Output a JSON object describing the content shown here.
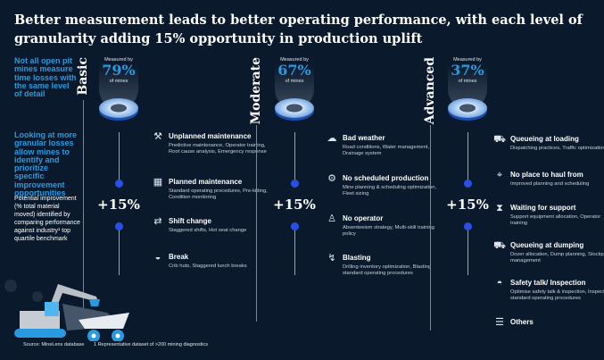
{
  "title": "Better measurement leads to better operating performance, with each level of granularity adding 15% opportunity in production uplift",
  "left": {
    "intro": "Not all open pit mines measure time losses with the same level of detail",
    "granular": "Looking at more granular losses allow mines to identify and prioritize specific improvement opportunities",
    "note": "Potential improvement (% total material moved) identified by comparing performance against industry¹ top quartile benchmark"
  },
  "levels": [
    {
      "name": "Basic",
      "measured_by": "Measured by",
      "pct": "79%",
      "of_mines": "of mines",
      "uplift": "+15%"
    },
    {
      "name": "Moderate",
      "measured_by": "Measured by",
      "pct": "67%",
      "of_mines": "of mines",
      "uplift": "+15%"
    },
    {
      "name": "Advanced",
      "measured_by": "Measured by",
      "pct": "37%",
      "of_mines": "of mines",
      "uplift": "+15%"
    }
  ],
  "basic_items": [
    {
      "icon": "tools-icon",
      "title": "Unplanned maintenance",
      "desc": "Predictive maintenance, Operator training, Root cause analysis, Emergency response"
    },
    {
      "icon": "calendar-clock-icon",
      "title": "Planned maintenance",
      "desc": "Standard operating procedures, Pre-kitting, Condition monitoring"
    },
    {
      "icon": "swap-arrows-icon",
      "title": "Shift change",
      "desc": "Staggered shifts, Hot seat change"
    },
    {
      "icon": "bowl-icon",
      "title": "Break",
      "desc": "Crib huts, Staggered lunch breaks"
    }
  ],
  "moderate_items": [
    {
      "icon": "rain-cloud-icon",
      "title": "Bad weather",
      "desc": "Road conditions, Water management, Drainage system"
    },
    {
      "icon": "gear-icon",
      "title": "No scheduled production",
      "desc": "Mine planning & scheduling optimization, Fleet sizing"
    },
    {
      "icon": "person-icon",
      "title": "No operator",
      "desc": "Absenteeism strategy, Multi-skill training policy"
    },
    {
      "icon": "blasting-icon",
      "title": "Blasting",
      "desc": "Drilling inventory optimization, Blasting standard operating procedures"
    }
  ],
  "advanced_items": [
    {
      "icon": "truck-icon",
      "title": "Queueing at loading",
      "desc": "Dispatching practices, Traffic optimization"
    },
    {
      "icon": "location-pins-icon",
      "title": "No place to haul from",
      "desc": "Improved planning and scheduling"
    },
    {
      "icon": "hourglass-icon",
      "title": "Waiting for support",
      "desc": "Support equipment allocation, Operator training"
    },
    {
      "icon": "dump-truck-icon",
      "title": "Queueing at dumping",
      "desc": "Dozer allocation, Dump planning, Stockpile management"
    },
    {
      "icon": "hard-hat-icon",
      "title": "Safety talk/ Inspection",
      "desc": "Optimise safety talk & inspection, Inspection standard operating procedures"
    },
    {
      "icon": "list-icon",
      "title": "Others",
      "desc": ""
    }
  ],
  "footer": {
    "source": "Source: MineLens database",
    "footnote": "1  Representative dataset of >200 mining diagnostics"
  },
  "colors": {
    "background": "#0a1a2c",
    "accent": "#2a9ae0",
    "dot": "#2950e6"
  }
}
